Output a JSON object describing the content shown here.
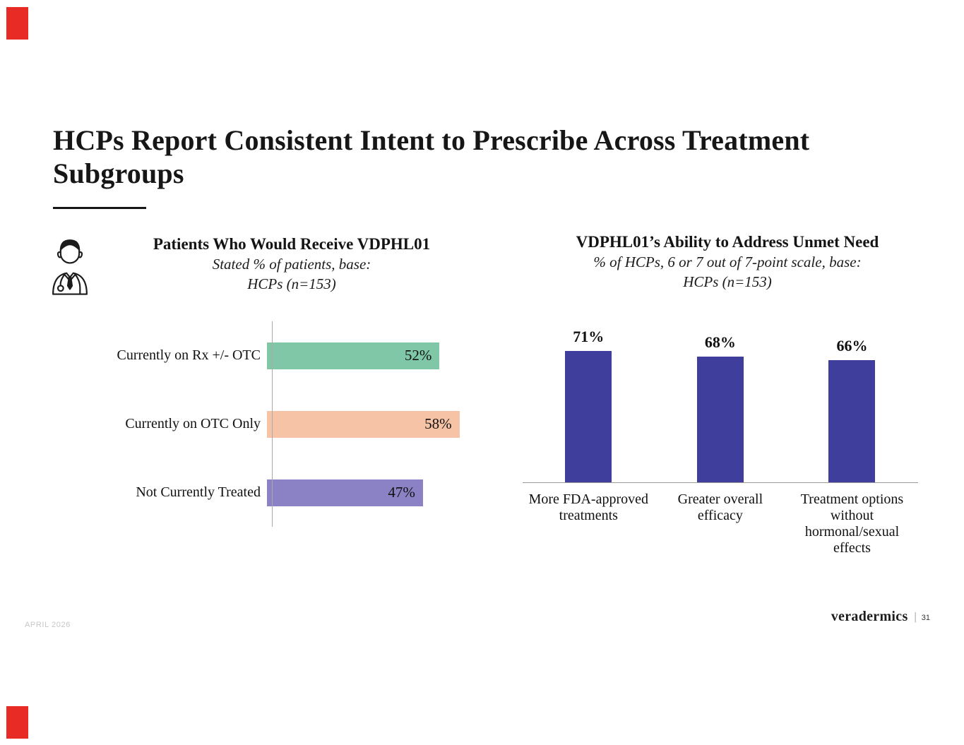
{
  "slide": {
    "title": "HCPs Report Consistent Intent to Prescribe Across Treatment Subgroups",
    "accent_color": "#e92b25",
    "background_color": "#ffffff"
  },
  "footer": {
    "date": "APRIL 2026",
    "brand": "veradermics",
    "separator": "|",
    "page": "31"
  },
  "icons": {
    "doctor": "doctor-icon"
  },
  "chart_data": [
    {
      "type": "bar",
      "orientation": "horizontal",
      "title": "Patients Who Would Receive VDPHL01",
      "subtitle": [
        "Stated % of patients, base:",
        "HCPs (n=153)"
      ],
      "categories": [
        "Currently on Rx +/- OTC",
        "Currently on OTC Only",
        "Not Currently Treated"
      ],
      "values": [
        52,
        58,
        47
      ],
      "value_labels": [
        "52%",
        "58%",
        "47%"
      ],
      "bar_colors": [
        "#7fc7a7",
        "#f6c3a6",
        "#8b82c6"
      ],
      "xlim": [
        0,
        100
      ],
      "grid": false,
      "legend": false
    },
    {
      "type": "bar",
      "orientation": "vertical",
      "title": "VDPHL01’s Ability to Address Unmet Need",
      "subtitle": [
        "% of HCPs, 6 or 7 out of 7-point scale, base:",
        "HCPs (n=153)"
      ],
      "categories": [
        "More FDA-approved treatments",
        "Greater overall efficacy",
        "Treatment options without hormonal/sexual effects"
      ],
      "values": [
        71,
        68,
        66
      ],
      "value_labels": [
        "71%",
        "68%",
        "66%"
      ],
      "bar_color": "#403e9c",
      "ylim": [
        0,
        100
      ],
      "grid": false,
      "legend": false
    }
  ]
}
